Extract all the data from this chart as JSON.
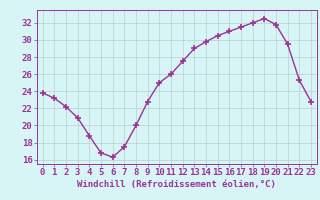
{
  "x": [
    0,
    1,
    2,
    3,
    4,
    5,
    6,
    7,
    8,
    9,
    10,
    11,
    12,
    13,
    14,
    15,
    16,
    17,
    18,
    19,
    20,
    21,
    22,
    23
  ],
  "y": [
    23.8,
    23.2,
    22.2,
    20.9,
    18.8,
    16.8,
    16.3,
    17.5,
    20.0,
    22.8,
    25.0,
    26.0,
    27.5,
    29.0,
    29.8,
    30.5,
    31.0,
    31.5,
    32.0,
    32.5,
    31.8,
    29.5,
    25.3,
    22.8
  ],
  "ylim": [
    15.5,
    33.5
  ],
  "xlim": [
    -0.5,
    23.5
  ],
  "yticks": [
    16,
    18,
    20,
    22,
    24,
    26,
    28,
    30,
    32
  ],
  "xticks": [
    0,
    1,
    2,
    3,
    4,
    5,
    6,
    7,
    8,
    9,
    10,
    11,
    12,
    13,
    14,
    15,
    16,
    17,
    18,
    19,
    20,
    21,
    22,
    23
  ],
  "xlabel": "Windchill (Refroidissement éolien,°C)",
  "line_color": "#993399",
  "marker": "+",
  "bg_color": "#d8f5f5",
  "grid_color": "#b8d0d0",
  "axis_color": "#993399",
  "tick_label_color": "#993399",
  "xlabel_color": "#993399",
  "marker_size": 5,
  "line_width": 1.0,
  "font_size": 6.5
}
